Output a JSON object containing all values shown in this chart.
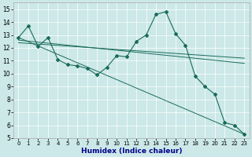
{
  "xlabel": "Humidex (Indice chaleur)",
  "xlim": [
    -0.5,
    23.5
  ],
  "ylim": [
    5,
    15.5
  ],
  "yticks": [
    5,
    6,
    7,
    8,
    9,
    10,
    11,
    12,
    13,
    14,
    15
  ],
  "xticks": [
    0,
    1,
    2,
    3,
    4,
    5,
    6,
    7,
    8,
    9,
    10,
    11,
    12,
    13,
    14,
    15,
    16,
    17,
    18,
    19,
    20,
    21,
    22,
    23
  ],
  "bg_color": "#cce8e8",
  "grid_color": "#ffffff",
  "line_color": "#1a6b5a",
  "main_line": {
    "x": [
      0,
      1,
      2,
      3,
      4,
      5,
      6,
      7,
      8,
      9,
      10,
      11,
      12,
      13,
      14,
      15,
      16,
      17,
      18,
      19,
      20,
      21,
      22,
      23
    ],
    "y": [
      12.8,
      13.7,
      12.1,
      12.8,
      11.1,
      10.7,
      10.6,
      10.4,
      9.9,
      10.5,
      11.4,
      11.3,
      12.5,
      13.0,
      14.6,
      14.8,
      13.1,
      12.2,
      9.8,
      9.0,
      8.4,
      6.2,
      6.0,
      5.3
    ]
  },
  "trend_lines": [
    {
      "x": [
        0,
        23
      ],
      "y": [
        12.8,
        5.3
      ]
    },
    {
      "x": [
        0,
        23
      ],
      "y": [
        12.6,
        10.8
      ]
    },
    {
      "x": [
        0,
        23
      ],
      "y": [
        12.4,
        11.2
      ]
    }
  ]
}
